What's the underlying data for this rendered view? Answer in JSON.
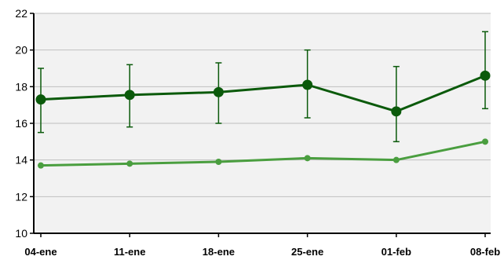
{
  "chart_data": {
    "type": "line",
    "categories": [
      "04-ene",
      "11-ene",
      "18-ene",
      "25-ene",
      "01-feb",
      "08-feb"
    ],
    "y_ticks": [
      "10",
      "12",
      "14",
      "16",
      "18",
      "20",
      "22"
    ],
    "ylim": [
      10,
      22
    ],
    "grid": true,
    "legend": "none",
    "series": [
      {
        "values": [
          17.3,
          17.55,
          17.7,
          18.1,
          16.65,
          18.6
        ],
        "error_low": [
          15.5,
          15.8,
          16.0,
          16.3,
          15.0,
          16.8
        ],
        "error_high": [
          19.0,
          19.2,
          19.3,
          20.0,
          19.1,
          21.0
        ],
        "color": "#0b5a0b"
      },
      {
        "values": [
          13.7,
          13.8,
          13.9,
          14.1,
          14.0,
          15.0
        ],
        "color": "#4a9e3f"
      }
    ]
  },
  "colors": {
    "plot_background": "#f2f2f2",
    "gridline": "#bfbfbf",
    "axis": "#000000"
  }
}
